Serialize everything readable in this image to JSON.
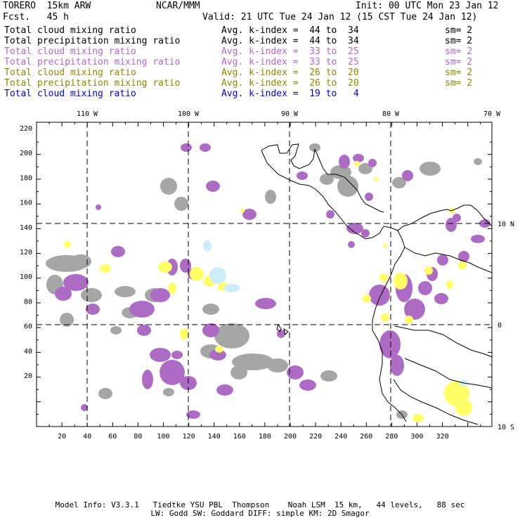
{
  "header": {
    "title": "TORERO  15km ARW",
    "center": "NCAR/MMM",
    "init": "Init: 00 UTC Mon 23 Jan 12",
    "fcst": "Fcst.   45 h",
    "valid": "Valid: 21 UTC Tue 24 Jan 12 (15 CST Tue 24 Jan 12)"
  },
  "legend": [
    {
      "field": "Total cloud mixing ratio",
      "kindex": "Avg. k-index =  44 to  34",
      "sm": "sm= 2",
      "color": "#000000"
    },
    {
      "field": "Total precipitation mixing ratio",
      "kindex": "Avg. k-index =  44 to  34",
      "sm": "sm= 2",
      "color": "#000000"
    },
    {
      "field": "Total cloud mixing ratio",
      "kindex": "Avg. k-index =  33 to  25",
      "sm": "sm= 2",
      "color": "#b267c8"
    },
    {
      "field": "Total precipitation mixing ratio",
      "kindex": "Avg. k-index =  33 to  25",
      "sm": "sm= 2",
      "color": "#b267c8"
    },
    {
      "field": "Total cloud mixing ratio",
      "kindex": "Avg. k-index =  26 to  20",
      "sm": "sm= 2",
      "color": "#8a8a00"
    },
    {
      "field": "Total precipitation mixing ratio",
      "kindex": "Avg. k-index =  26 to  20",
      "sm": "sm= 2",
      "color": "#8a8a00"
    },
    {
      "field": "Total cloud mixing ratio",
      "kindex": "Avg. k-index =  19 to   4",
      "sm": "",
      "color": "#0000dd"
    }
  ],
  "map": {
    "lon_labels": [
      "110 W",
      "100 W",
      "90 W",
      "80 W",
      "70 W"
    ],
    "lat_labels": [
      "10 N",
      "0",
      "10 S"
    ],
    "x_ticks": [
      "20",
      "40",
      "60",
      "80",
      "100",
      "120",
      "140",
      "160",
      "180",
      "200",
      "220",
      "240",
      "260",
      "280",
      "300",
      "320"
    ],
    "y_ticks": [
      "220",
      "200",
      "180",
      "160",
      "140",
      "120",
      "100",
      "80",
      "60",
      "40",
      "20"
    ],
    "colors": {
      "gray": "#a6a6a6",
      "purple": "#ad6cc4",
      "yellow": "#ffff66",
      "lightblue": "#cdeef9",
      "coast": "#000000"
    }
  },
  "footer": {
    "line1": "Model Info: V3.3.1   Tiedtke YSU PBL  Thompson    Noah LSM  15 km,   44 levels,   88 sec",
    "line2": "LW: Godd SW: Goddard DIFF: simple KM: 2D Smagor"
  }
}
